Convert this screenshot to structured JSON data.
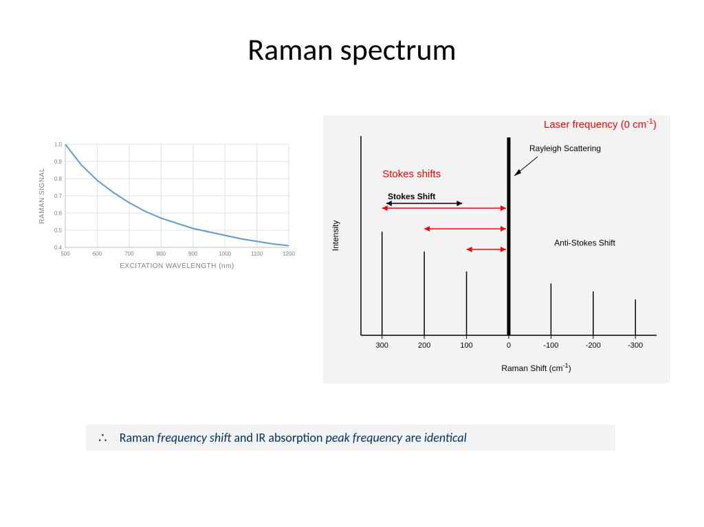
{
  "title": "Raman spectrum",
  "left_chart": {
    "type": "line",
    "xlabel": "EXCITATION WAVELENGTH (nm)",
    "ylabel": "RAMAN SIGNAL",
    "xlim": [
      500,
      1200
    ],
    "ylim": [
      0.4,
      1.0
    ],
    "xticks": [
      500,
      600,
      700,
      800,
      900,
      1000,
      1100,
      1200
    ],
    "yticks": [
      0.4,
      0.5,
      0.6,
      0.7,
      0.8,
      0.9,
      1.0
    ],
    "line_color": "#5b9bd5",
    "line_width": 2,
    "grid_color": "#e0e0e0",
    "axis_color": "#bfbfbf",
    "label_color": "#7f7f7f",
    "label_fontsize": 9,
    "tick_fontsize": 8,
    "background_color": "#ffffff",
    "data": [
      {
        "x": 500,
        "y": 1.0
      },
      {
        "x": 550,
        "y": 0.88
      },
      {
        "x": 600,
        "y": 0.79
      },
      {
        "x": 650,
        "y": 0.72
      },
      {
        "x": 700,
        "y": 0.66
      },
      {
        "x": 750,
        "y": 0.61
      },
      {
        "x": 800,
        "y": 0.57
      },
      {
        "x": 850,
        "y": 0.54
      },
      {
        "x": 900,
        "y": 0.51
      },
      {
        "x": 950,
        "y": 0.49
      },
      {
        "x": 1000,
        "y": 0.47
      },
      {
        "x": 1050,
        "y": 0.45
      },
      {
        "x": 1100,
        "y": 0.435
      },
      {
        "x": 1150,
        "y": 0.42
      },
      {
        "x": 1200,
        "y": 0.41
      }
    ]
  },
  "right_chart": {
    "type": "stick",
    "background_color": "#f3f3f3",
    "axis_color": "#000000",
    "xlabel": "Raman Shift (cm",
    "xlabel_sup": "-1",
    "xlabel_close": ")",
    "ylabel": "Intensity",
    "label_fontsize": 12,
    "tick_fontsize": 11,
    "xticks": [
      300,
      200,
      100,
      0,
      -100,
      -200,
      -300
    ],
    "xtick_labels": [
      "300",
      "200",
      "100",
      "0",
      "-100",
      "-200",
      "-300"
    ],
    "sticks": [
      {
        "x": 300,
        "h": 0.52
      },
      {
        "x": 200,
        "h": 0.42
      },
      {
        "x": 100,
        "h": 0.32
      },
      {
        "x": -100,
        "h": 0.26
      },
      {
        "x": -200,
        "h": 0.22
      },
      {
        "x": -300,
        "h": 0.18
      }
    ],
    "rayleigh": {
      "x": 0,
      "h": 1.0,
      "width": 5
    },
    "annotation_laser": "Laser frequency (0 cm",
    "annotation_laser_sup": "-1",
    "annotation_laser_close": ")",
    "annotation_rayleigh": "Rayleigh Scattering",
    "annotation_stokes_red": "Stokes shifts",
    "annotation_stokes": "Stokes Shift",
    "annotation_antistokes": "Anti-Stokes Shift",
    "red_color": "#ff0000",
    "text_color": "#000000",
    "stick_color": "#000000",
    "arrow_color": "#ff0000"
  },
  "conclusion": {
    "therefore": "∴",
    "text_plain1": "Raman ",
    "text_ital1": "frequency shift",
    "text_plain2": " and IR absorption ",
    "text_ital2": "peak frequency",
    "text_plain3": " are ",
    "text_ital3": "identical",
    "color": "#003366",
    "background": "#f3f3f3",
    "fontsize": 18
  }
}
